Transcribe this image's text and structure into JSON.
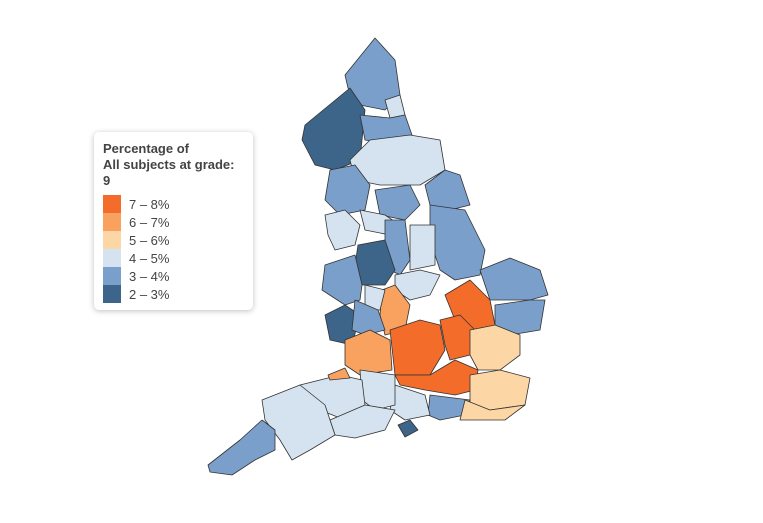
{
  "legend": {
    "title_lines": [
      "Percentage of",
      "All subjects at grade:",
      "9"
    ],
    "items": [
      {
        "label": "7 – 8%",
        "color": "#f36c2a"
      },
      {
        "label": "6 – 7%",
        "color": "#f9a15e"
      },
      {
        "label": "5 – 6%",
        "color": "#fdd6a6"
      },
      {
        "label": "4 – 5%",
        "color": "#d4e3ef"
      },
      {
        "label": "3 – 4%",
        "color": "#7b9fcb"
      },
      {
        "label": "2 – 3%",
        "color": "#3d6489"
      }
    ]
  }
}
